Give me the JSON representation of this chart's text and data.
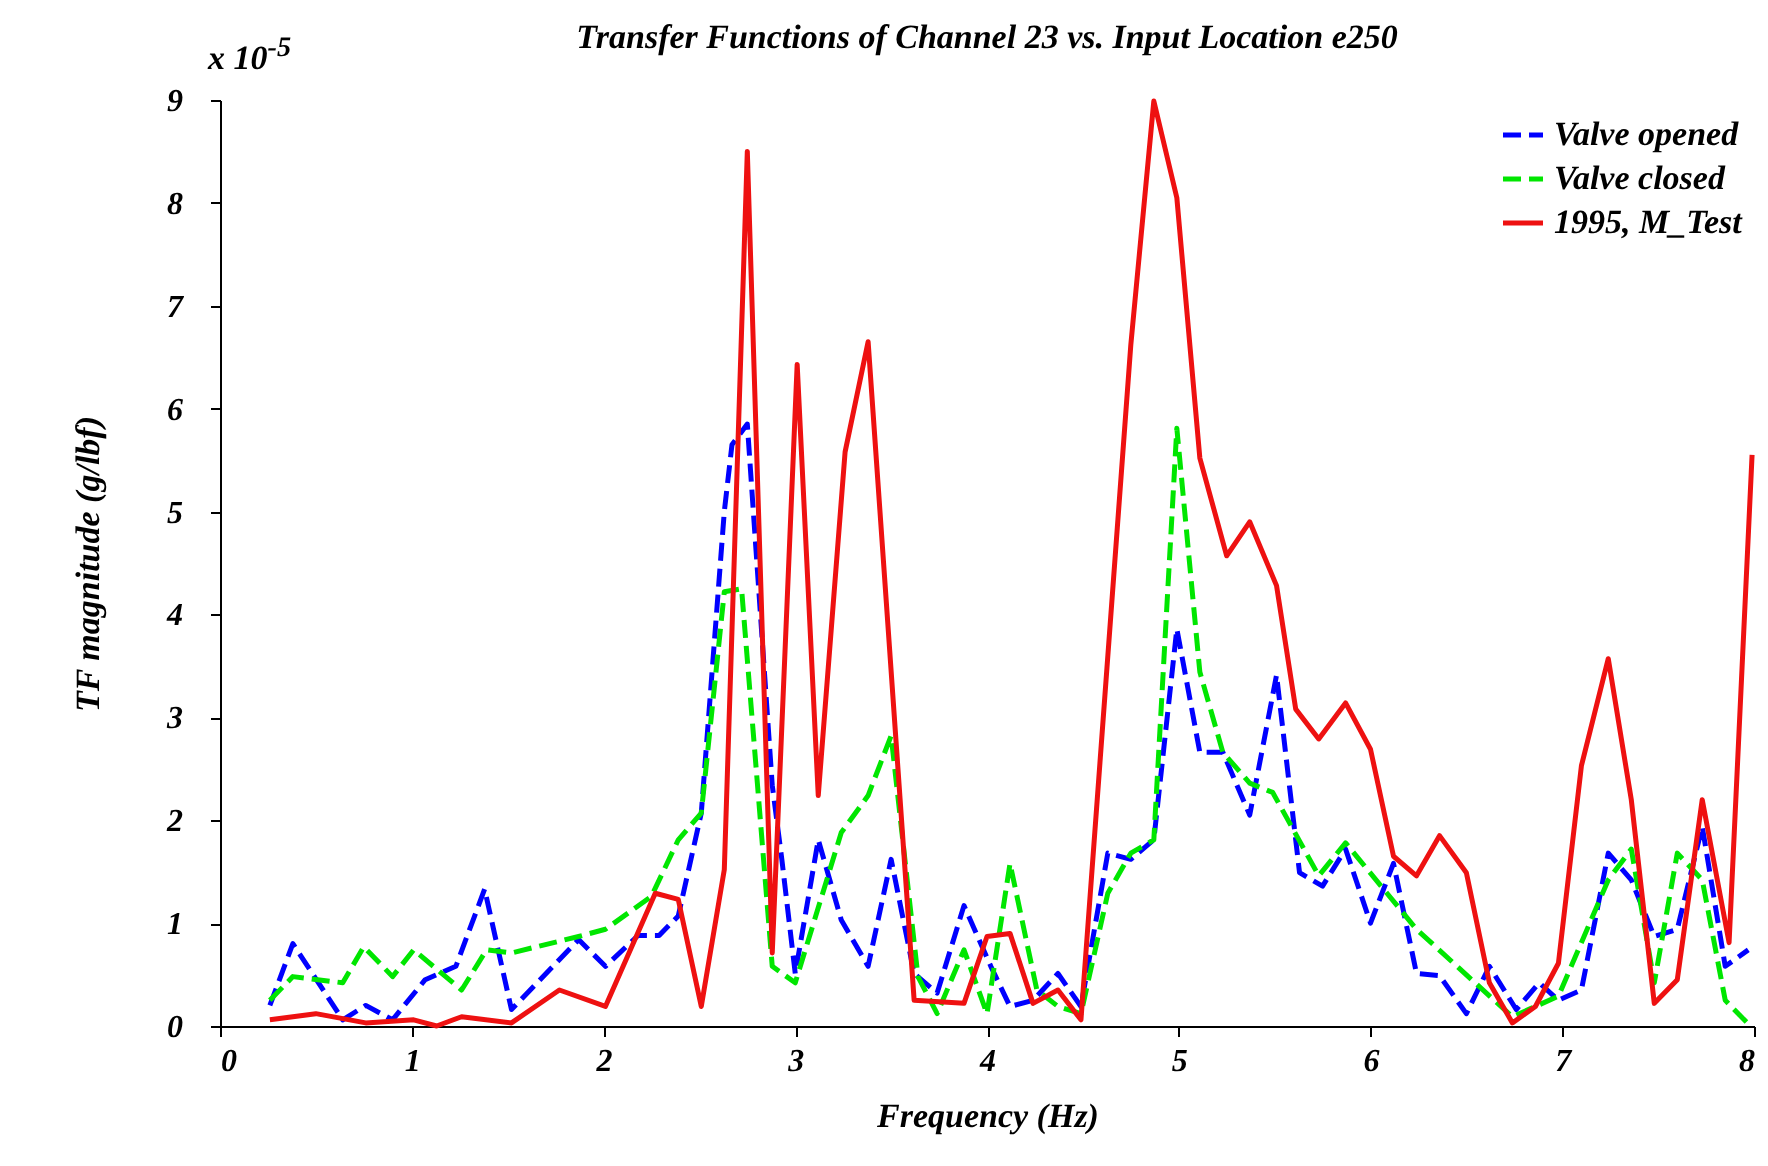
{
  "chart_data": {
    "type": "line",
    "title": "Transfer Functions of Channel 23 vs. Input Location e250",
    "xlabel": "Frequency (Hz)",
    "ylabel": "TF magnitude (g/lbf)",
    "annotations": [
      "x 10$^{-5}$"
    ],
    "xlim": [
      0,
      8
    ],
    "xticks": [
      0,
      1,
      2,
      3,
      4,
      5,
      6,
      7,
      8
    ],
    "ylim": [
      0,
      9
    ],
    "yticks": [
      0,
      1,
      2,
      3,
      4,
      5,
      6,
      7,
      8,
      9
    ],
    "grid": false,
    "legend": "top right",
    "marker": "none",
    "series": [
      {
        "name": "Valve opened",
        "color": "#0000ff",
        "line_style": "dashed",
        "x": [
          0.26,
          0.38,
          0.64,
          0.76,
          0.9,
          1.07,
          1.23,
          1.38,
          1.52,
          1.87,
          2.01,
          2.18,
          2.29,
          2.39,
          2.51,
          2.63,
          2.67,
          2.75,
          2.88,
          2.93,
          3.0,
          3.12,
          3.24,
          3.38,
          3.5,
          3.62,
          3.74,
          3.88,
          4.02,
          4.12,
          4.24,
          4.37,
          4.49,
          4.63,
          4.75,
          4.87,
          4.99,
          5.11,
          5.23,
          5.37,
          5.51,
          5.63,
          5.75,
          5.87,
          6.0,
          6.12,
          6.24,
          6.36,
          6.5,
          6.62,
          6.76,
          6.88,
          6.98,
          7.1,
          7.24,
          7.36,
          7.48,
          7.6,
          7.73,
          7.85,
          7.97
        ],
        "values": [
          0.2,
          0.8,
          0.06,
          0.2,
          0.06,
          0.45,
          0.58,
          1.33,
          0.16,
          0.84,
          0.58,
          0.88,
          0.88,
          1.07,
          2.07,
          5.0,
          5.65,
          5.85,
          2.34,
          1.62,
          0.51,
          1.81,
          1.03,
          0.58,
          1.62,
          0.51,
          0.32,
          1.17,
          0.58,
          0.19,
          0.25,
          0.51,
          0.19,
          1.68,
          1.62,
          1.81,
          3.86,
          2.66,
          2.66,
          2.05,
          3.41,
          1.49,
          1.36,
          1.72,
          1.0,
          1.58,
          0.51,
          0.49,
          0.12,
          0.58,
          0.16,
          0.42,
          0.25,
          0.35,
          1.68,
          1.42,
          0.87,
          0.94,
          1.94,
          0.58,
          0.74
        ]
      },
      {
        "name": "Valve closed",
        "color": "#00e600",
        "line_style": "dashed",
        "x": [
          0.26,
          0.38,
          0.64,
          0.75,
          0.9,
          1.01,
          1.26,
          1.39,
          1.52,
          1.87,
          2.01,
          2.25,
          2.39,
          2.51,
          2.63,
          2.72,
          2.88,
          3.0,
          3.24,
          3.38,
          3.5,
          3.64,
          3.74,
          3.88,
          4.0,
          4.12,
          4.26,
          4.37,
          4.49,
          4.63,
          4.75,
          4.87,
          4.99,
          5.11,
          5.23,
          5.37,
          5.49,
          5.73,
          5.87,
          6.24,
          6.51,
          6.74,
          6.98,
          7.24,
          7.36,
          7.48,
          7.6,
          7.73,
          7.85,
          7.97
        ],
        "values": [
          0.25,
          0.48,
          0.42,
          0.77,
          0.48,
          0.74,
          0.35,
          0.74,
          0.71,
          0.87,
          0.94,
          1.26,
          1.81,
          2.07,
          4.22,
          4.25,
          0.58,
          0.42,
          1.88,
          2.24,
          2.82,
          0.48,
          0.12,
          0.74,
          0.12,
          1.58,
          0.35,
          0.19,
          0.12,
          1.29,
          1.68,
          1.81,
          5.81,
          3.44,
          2.66,
          2.36,
          2.27,
          1.46,
          1.78,
          0.94,
          0.48,
          0.09,
          0.29,
          1.42,
          1.72,
          0.42,
          1.68,
          1.42,
          0.25,
          0.02
        ]
      },
      {
        "name": "1995, M_Test",
        "color": "#ee1111",
        "line_style": "solid",
        "x": [
          0.26,
          0.5,
          0.76,
          1.01,
          1.13,
          1.26,
          1.52,
          1.77,
          2.01,
          2.27,
          2.39,
          2.51,
          2.63,
          2.75,
          2.88,
          3.01,
          3.12,
          3.26,
          3.38,
          3.62,
          3.88,
          4.0,
          4.12,
          4.24,
          4.37,
          4.49,
          4.75,
          4.87,
          4.99,
          5.11,
          5.25,
          5.37,
          5.51,
          5.61,
          5.73,
          5.87,
          6.0,
          6.12,
          6.24,
          6.36,
          6.5,
          6.62,
          6.74,
          6.86,
          6.98,
          7.1,
          7.24,
          7.36,
          7.48,
          7.6,
          7.73,
          7.87,
          7.99
        ],
        "values": [
          0.06,
          0.12,
          0.03,
          0.06,
          0.0,
          0.09,
          0.03,
          0.35,
          0.19,
          1.29,
          1.23,
          0.19,
          1.52,
          8.5,
          0.71,
          6.43,
          2.24,
          5.58,
          6.65,
          0.25,
          0.22,
          0.87,
          0.9,
          0.22,
          0.35,
          0.06,
          6.62,
          8.99,
          8.05,
          5.52,
          4.57,
          4.9,
          4.28,
          3.08,
          2.79,
          3.14,
          2.69,
          1.65,
          1.46,
          1.85,
          1.49,
          0.42,
          0.03,
          0.19,
          0.61,
          2.53,
          3.57,
          2.2,
          0.22,
          0.45,
          2.2,
          0.81,
          5.55
        ]
      }
    ]
  }
}
